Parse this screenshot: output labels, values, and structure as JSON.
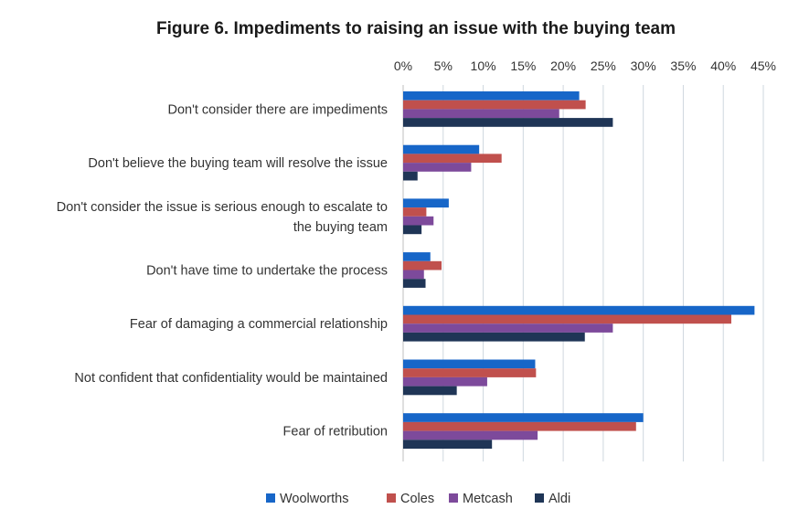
{
  "chart_data": {
    "type": "bar",
    "orientation": "horizontal",
    "title": "Figure 6. Impediments to raising an issue with the buying team",
    "xlabel": "",
    "ylabel": "",
    "xlim": [
      0,
      45
    ],
    "x_ticks": [
      0,
      5,
      10,
      15,
      20,
      25,
      30,
      35,
      40,
      45
    ],
    "x_tick_labels": [
      "0%",
      "5%",
      "10%",
      "15%",
      "20%",
      "25%",
      "30%",
      "35%",
      "40%",
      "45%"
    ],
    "x_axis_position": "top",
    "grid": true,
    "legend_position": "bottom",
    "categories": [
      [
        "Don't consider there are impediments"
      ],
      [
        "Don't believe the buying team will resolve the issue"
      ],
      [
        "Don't consider the issue is serious enough to escalate to",
        "the buying team"
      ],
      [
        "Don't have time to undertake the process"
      ],
      [
        "Fear of damaging a commercial relationship"
      ],
      [
        "Not confident that confidentiality would be maintained"
      ],
      [
        "Fear of retribution"
      ]
    ],
    "series": [
      {
        "name": "Woolworths",
        "color": "#1766c8",
        "values": [
          22,
          9.5,
          5.7,
          3.4,
          43.9,
          16.5,
          30
        ]
      },
      {
        "name": "Coles",
        "color": "#c0504d",
        "values": [
          22.8,
          12.3,
          2.9,
          4.8,
          41,
          16.6,
          29.1
        ]
      },
      {
        "name": "Metcash",
        "color": "#7d4a9b",
        "values": [
          19.5,
          8.5,
          3.8,
          2.6,
          26.2,
          10.5,
          16.8
        ]
      },
      {
        "name": "Aldi",
        "color": "#1f3556",
        "values": [
          26.2,
          1.8,
          2.3,
          2.8,
          22.7,
          6.7,
          11.1
        ]
      }
    ]
  }
}
